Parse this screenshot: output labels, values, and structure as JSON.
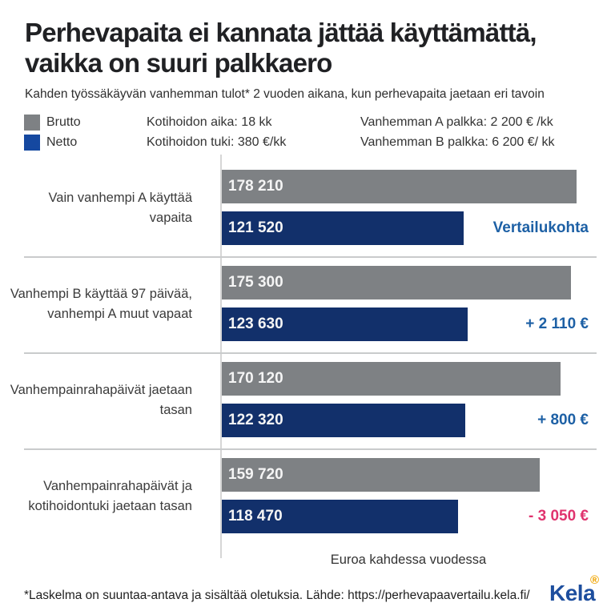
{
  "title": "Perhevapaita ei kannata jättää käyttämättä, vaikka on suuri palkkaero",
  "subtitle": "Kahden työssäkäyvän vanhemman tulot* 2 vuoden aikana, kun perhevapaita jaetaan eri tavoin",
  "legend": {
    "brutto_label": "Brutto",
    "netto_label": "Netto",
    "brutto_color": "#7e8184",
    "netto_swatch_color": "#1548a0",
    "info_left": [
      "Kotihoidon aika: 18 kk",
      "Kotihoidon tuki: 380 €/kk"
    ],
    "info_right": [
      "Vanhemman A palkka: 2 200 € /kk",
      "Vanhemman B palkka: 6 200 €/ kk"
    ]
  },
  "chart_data": {
    "type": "bar",
    "orientation": "horizontal",
    "xlabel": "Euroa kahdessa vuodessa",
    "grid": false,
    "legend_position": "top-left",
    "series_names": [
      "Brutto",
      "Netto"
    ],
    "colors": {
      "brutto": "#7e8184",
      "netto": "#12306b"
    },
    "categories": [
      "Vain vanhempi A käyttää vapaita",
      "Vanhempi B käyttää 97 päivää, vanhempi A muut vapaat",
      "Vanhempainrahapäivät jaetaan tasan",
      "Vanhempainrahapäivät ja kotihoidontuki jaetaan tasan"
    ],
    "rows": [
      {
        "label": "Vain vanhempi A käyttää\nvapaita",
        "brutto": 178210,
        "netto": 121520,
        "brutto_label": "178 210",
        "netto_label": "121 520",
        "annotation": {
          "text": "Vertailukohta",
          "color": "#1d60a5"
        }
      },
      {
        "label": "Vanhempi B käyttää 97 päivää,\nvanhempi A muut vapaat",
        "brutto": 175300,
        "netto": 123630,
        "brutto_label": "175 300",
        "netto_label": "123 630",
        "annotation": {
          "text": "+ 2 110 €",
          "color": "#1d60a5"
        }
      },
      {
        "label": "Vanhempainrahapäivät jaetaan\ntasan",
        "brutto": 170120,
        "netto": 122320,
        "brutto_label": "170 120",
        "netto_label": "122 320",
        "annotation": {
          "text": "+ 800 €",
          "color": "#1d60a5"
        }
      },
      {
        "label": "Vanhempainrahapäivät ja\nkotihoidontuki jaetaan tasan",
        "brutto": 159720,
        "netto": 118470,
        "brutto_label": "159 720",
        "netto_label": "118 470",
        "annotation": {
          "text": "- 3 050 €",
          "color": "#e0336e"
        }
      }
    ]
  },
  "footer": {
    "footnote": "*Laskelma on suuntaa-antava ja sisältää oletuksia. Lähde: https://perhevapaavertailu.kela.fi/",
    "logo_text": "Kela",
    "registered_mark": "®",
    "logo_color": "#1d4e9e",
    "registered_color": "#f0a400"
  }
}
